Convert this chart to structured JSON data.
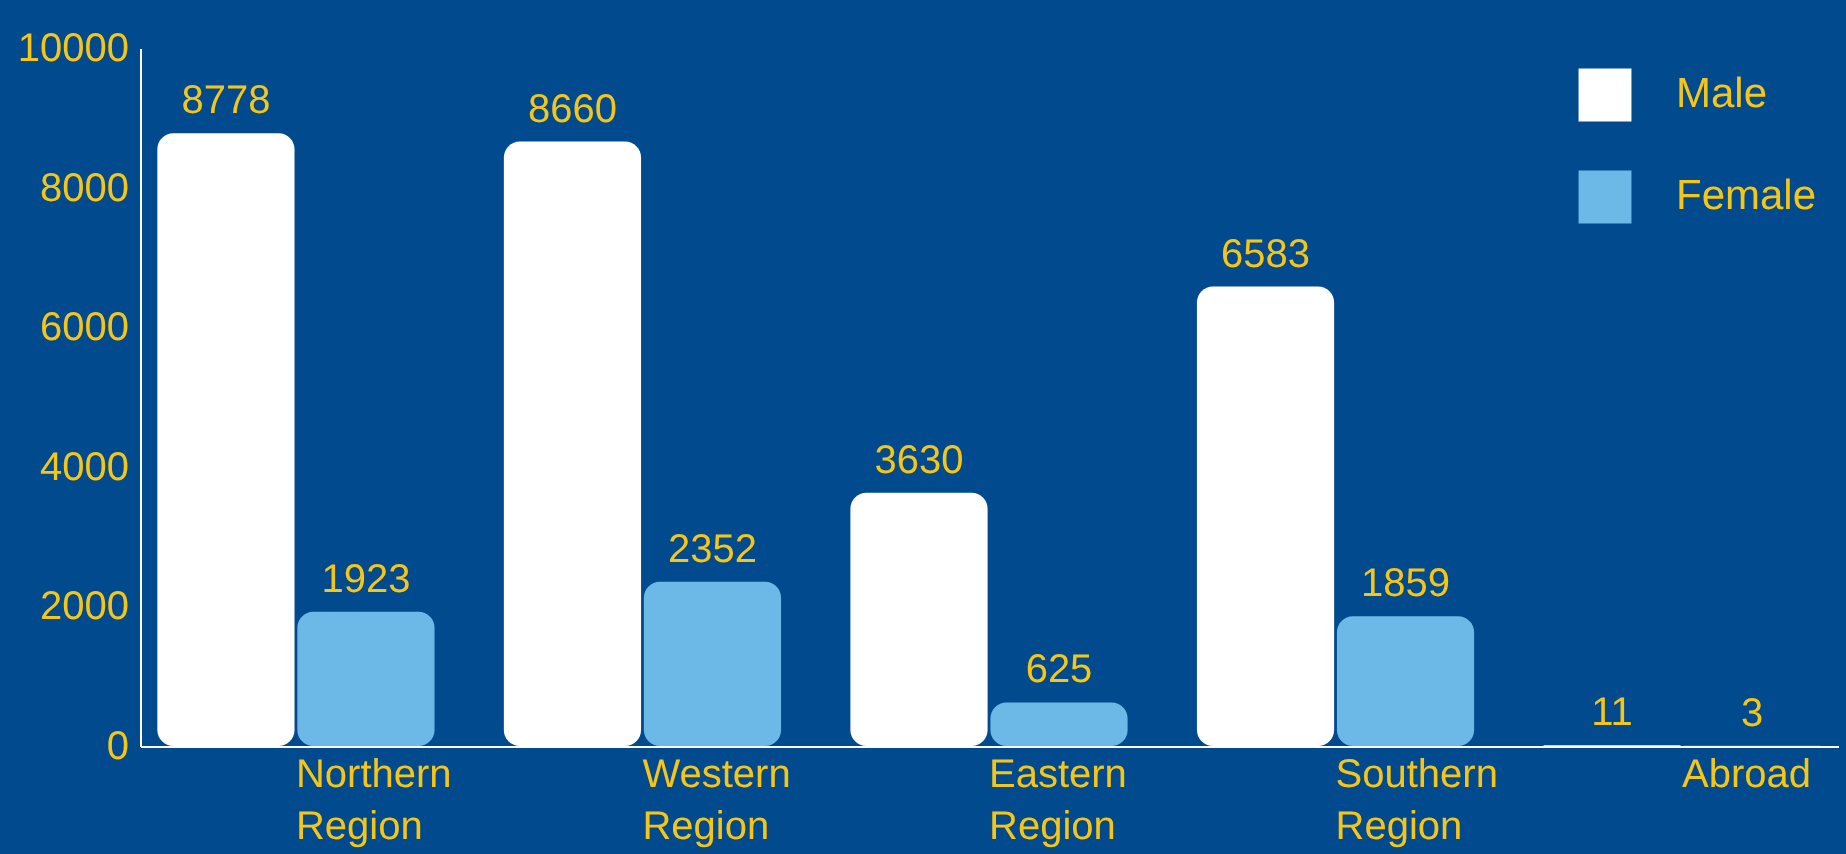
{
  "chart_data": {
    "type": "bar",
    "categories": [
      "Northern Region",
      "Western Region",
      "Eastern Region",
      "Southern Region",
      "Abroad"
    ],
    "series": [
      {
        "name": "Male",
        "color": "#ffffff",
        "values": [
          8778,
          8660,
          3630,
          6583,
          11
        ]
      },
      {
        "name": "Female",
        "color": "#6cb8e6",
        "values": [
          1923,
          2352,
          625,
          1859,
          3
        ]
      }
    ],
    "ylim": [
      0,
      10000
    ],
    "yticks": [
      0,
      2000,
      4000,
      6000,
      8000,
      10000
    ],
    "data_labels": true,
    "legend": "top right",
    "grid": false
  }
}
